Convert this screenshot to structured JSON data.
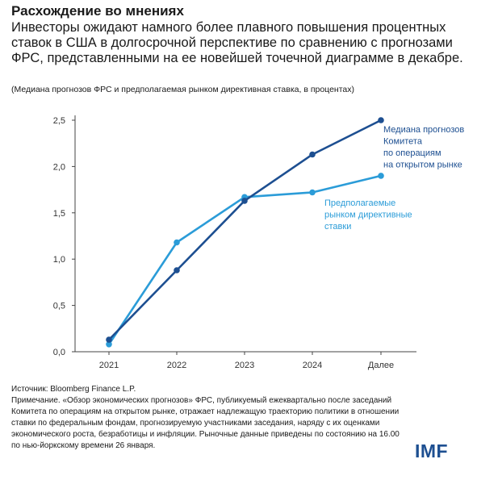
{
  "header": {
    "title": "Расхождение во мнениях",
    "subtitle": "Инвесторы ожидают намного более плавного повышения процентных ставок в США в долгосрочной перспективе по сравнению с прогнозами ФРС, представленными на ее новейшей точечной диаграмме в декабре.",
    "units": "(Медиана прогнозов ФРС и предполагаемая рынком директивная ставка, в процентах)"
  },
  "chart_data": {
    "type": "line",
    "categories": [
      "2021",
      "2022",
      "2023",
      "2024",
      "Далее"
    ],
    "ylim": [
      0,
      2.5
    ],
    "yticks": [
      "0,0",
      "0,5",
      "1,0",
      "1,5",
      "2,0",
      "2,5"
    ],
    "grid": false,
    "series": [
      {
        "name": "Медиана прогнозов Комитета по операциям на открытом рынке",
        "label_lines": [
          "Медиана прогнозов",
          "Комитета",
          "по операциям",
          "на открытом рынке"
        ],
        "color": "#1d4f91",
        "values": [
          0.13,
          0.88,
          1.63,
          2.13,
          2.5
        ]
      },
      {
        "name": "Предполагаемые рынком директивные ставки",
        "label_lines": [
          "Предполагаемые",
          "рынком директивные",
          "ставки"
        ],
        "color": "#2b9cd8",
        "values": [
          0.08,
          1.18,
          1.67,
          1.72,
          1.9
        ]
      }
    ]
  },
  "footer": {
    "source": "Источник: Bloomberg Finance L.P.",
    "note": "Примечание. «Обзор экономических прогнозов» ФРС, публикуемый ежеквартально после заседаний Комитета по операциям на открытом рынке, отражает надлежащую траекторию политики в отношении ставки по федеральным фондам, прогнозируемую участниками заседания, наряду с их оценками экономического роста, безработицы и инфляции. Рыночные данные приведены по состоянию на 16.00 по нью-йоркскому времени 26 января."
  },
  "brand": {
    "logo": "IMF",
    "color": "#1d4f91"
  }
}
